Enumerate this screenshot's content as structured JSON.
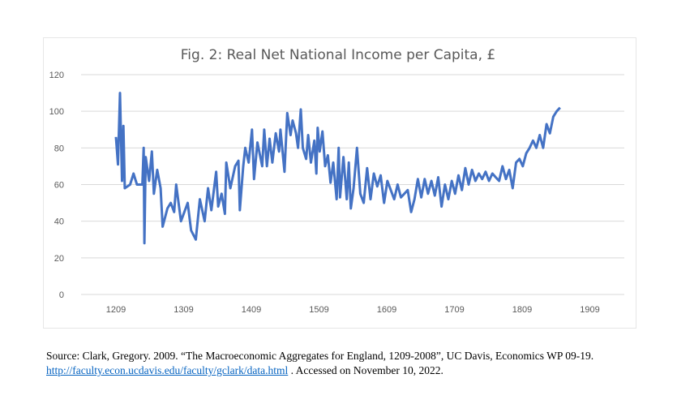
{
  "chart_data": {
    "type": "line",
    "title": "Fig. 2: Real Net National Income per Capita, £",
    "xlabel": "",
    "ylabel": "",
    "ylim": [
      0,
      120
    ],
    "yticks": [
      "0",
      "20",
      "40",
      "60",
      "80",
      "100",
      "120"
    ],
    "xticks": [
      "1209",
      "1309",
      "1409",
      "1509",
      "1609",
      "1709",
      "1809",
      "1909"
    ],
    "grid": true,
    "legend": "none",
    "color": "#4472C4",
    "series": [
      {
        "name": "Real Net National Income per Capita",
        "x": [
          1209,
          1212,
          1215,
          1218,
          1220,
          1222,
          1230,
          1235,
          1240,
          1248,
          1250,
          1251,
          1253,
          1258,
          1262,
          1265,
          1270,
          1275,
          1278,
          1285,
          1290,
          1295,
          1298,
          1305,
          1315,
          1320,
          1327,
          1333,
          1340,
          1345,
          1350,
          1357,
          1360,
          1365,
          1370,
          1372,
          1378,
          1385,
          1390,
          1392,
          1397,
          1400,
          1405,
          1410,
          1413,
          1418,
          1425,
          1428,
          1432,
          1436,
          1440,
          1445,
          1450,
          1452,
          1458,
          1462,
          1467,
          1470,
          1475,
          1478,
          1482,
          1485,
          1490,
          1493,
          1497,
          1502,
          1505,
          1507,
          1510,
          1514,
          1518,
          1522,
          1526,
          1530,
          1535,
          1538,
          1540,
          1545,
          1550,
          1553,
          1556,
          1560,
          1565,
          1570,
          1575,
          1580,
          1585,
          1590,
          1595,
          1600,
          1605,
          1610,
          1615,
          1620,
          1625,
          1630,
          1635,
          1640,
          1645,
          1650,
          1655,
          1660,
          1665,
          1670,
          1675,
          1680,
          1685,
          1690,
          1695,
          1700,
          1705,
          1710,
          1715,
          1720,
          1725,
          1730,
          1735,
          1740,
          1745,
          1750,
          1755,
          1760,
          1765,
          1770,
          1775,
          1780,
          1785,
          1790,
          1795,
          1800,
          1805,
          1810,
          1815,
          1820,
          1825,
          1830,
          1835,
          1840,
          1845,
          1850,
          1855,
          1860,
          1865
        ],
        "values": [
          86,
          71,
          110,
          62,
          92,
          58,
          60,
          66,
          60,
          60,
          80,
          28,
          75,
          62,
          78,
          55,
          68,
          58,
          37,
          47,
          50,
          45,
          60,
          40,
          50,
          35,
          30,
          52,
          40,
          58,
          46,
          67,
          48,
          55,
          44,
          72,
          58,
          70,
          73,
          46,
          70,
          80,
          72,
          90,
          63,
          83,
          70,
          90,
          70,
          85,
          72,
          88,
          78,
          90,
          67,
          99,
          87,
          95,
          88,
          80,
          101,
          80,
          74,
          87,
          72,
          84,
          66,
          91,
          78,
          89,
          70,
          76,
          61,
          72,
          52,
          80,
          53,
          75,
          52,
          72,
          47,
          58,
          80,
          55,
          50,
          69,
          52,
          66,
          59,
          65,
          50,
          62,
          57,
          52,
          60,
          53,
          55,
          57,
          45,
          52,
          63,
          53,
          63,
          55,
          62,
          54,
          64,
          48,
          60,
          52,
          62,
          55,
          65,
          57,
          69,
          60,
          68,
          62,
          66,
          63,
          67,
          62,
          66,
          64,
          62,
          70,
          63,
          68,
          58,
          72,
          74,
          70,
          77,
          80,
          84,
          80,
          87,
          80,
          93,
          88,
          97,
          100,
          102
        ]
      }
    ]
  },
  "source": {
    "line1": "Source: Clark, Gregory.  2009. “The Macroeconomic Aggregates for England, 1209-2008”,  UC Davis, Economics WP 09-19.",
    "link": "http://faculty.econ.ucdavis.edu/faculty/gclark/data.html",
    "line2_suffix": " .  Accessed on November 10, 2022."
  }
}
